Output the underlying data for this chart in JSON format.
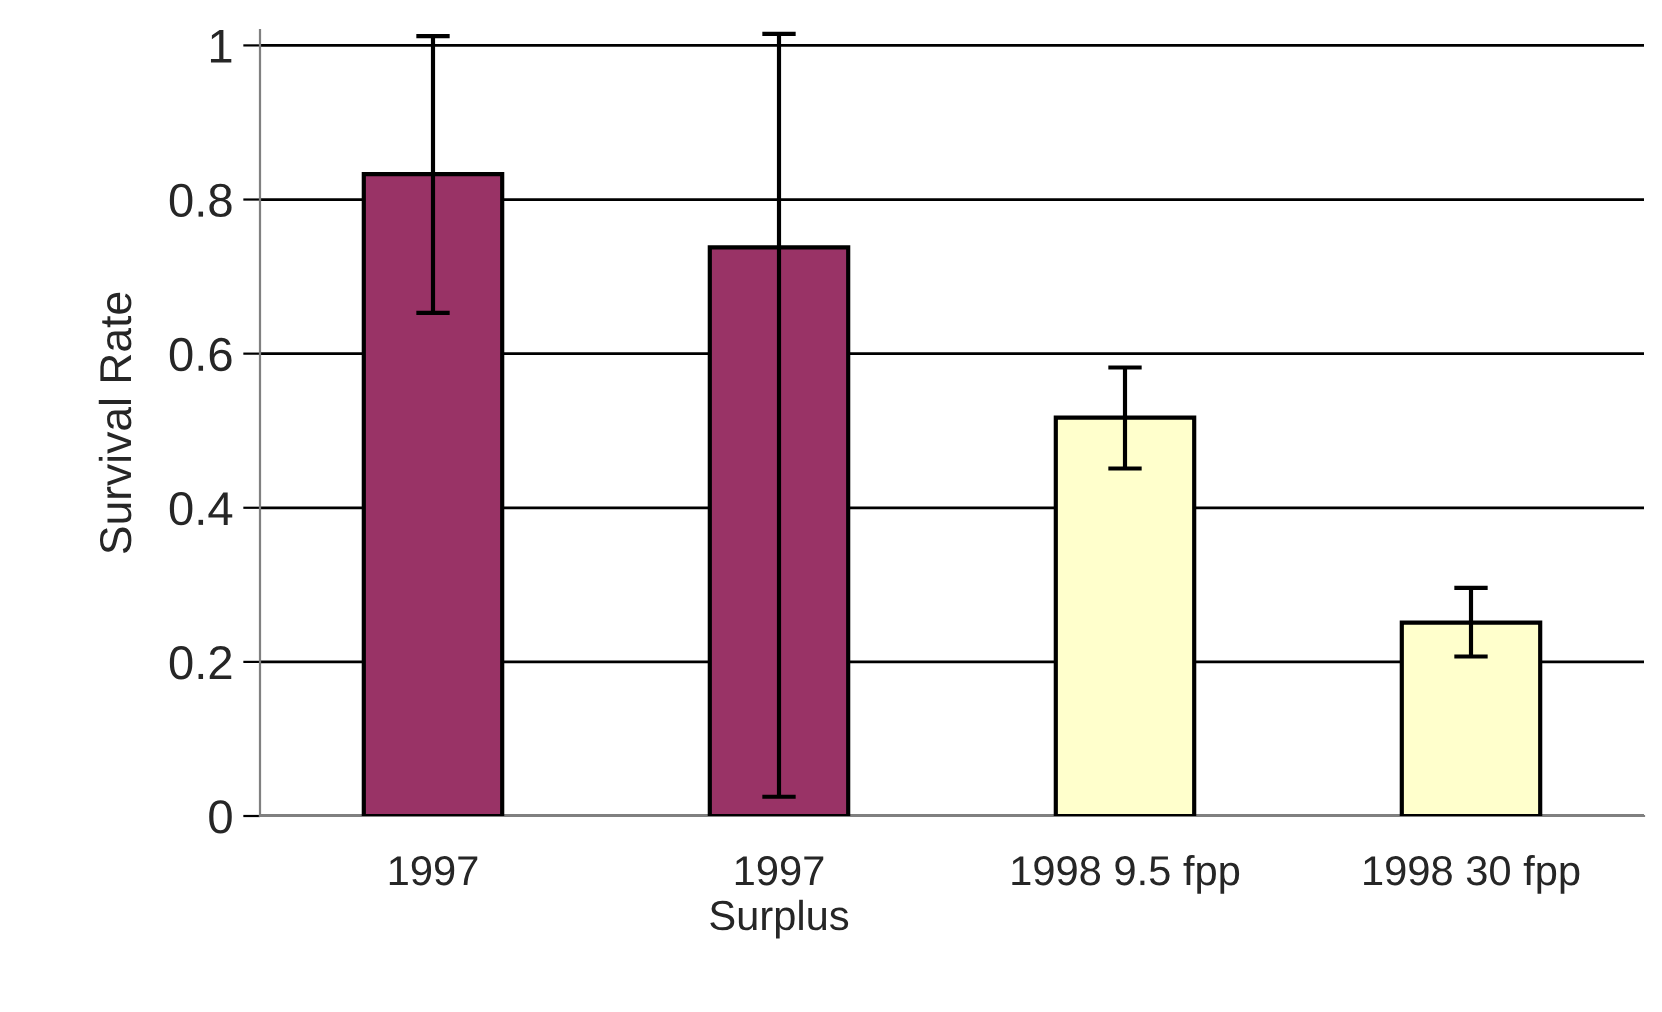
{
  "chart_data": {
    "type": "bar",
    "ylabel": "Survival Rate",
    "categories": [
      "1997",
      "1997\nSurplus",
      "1998 9.5 fpp",
      "1998 30 fpp"
    ],
    "values": [
      0.833,
      0.738,
      0.517,
      0.251
    ],
    "colors": [
      "#993366",
      "#993366",
      "#ffffcc",
      "#ffffcc"
    ],
    "errors": [
      [
        0.653,
        1.012
      ],
      [
        0.025,
        1.015
      ],
      [
        0.451,
        0.582
      ],
      [
        0.207,
        0.296
      ]
    ],
    "ylim": [
      0,
      1.02
    ],
    "yticks": [
      0,
      0.2,
      0.4,
      0.6,
      0.8,
      1
    ],
    "grid": "y",
    "legend": false
  }
}
